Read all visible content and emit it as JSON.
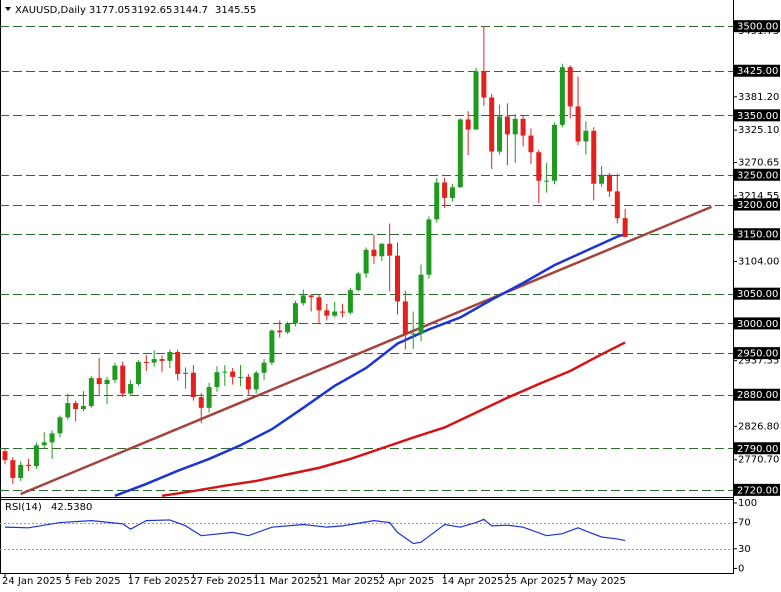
{
  "chart_data": [
    {
      "type": "candlestick",
      "title": "XAUUSD,Daily",
      "categories": [
        "24 Jan 2025",
        null,
        null,
        null,
        null,
        null,
        null,
        null,
        "5 Feb 2025",
        null,
        null,
        null,
        null,
        null,
        null,
        null,
        "17 Feb 2025",
        null,
        null,
        null,
        null,
        null,
        null,
        null,
        "27 Feb 2025",
        null,
        null,
        null,
        null,
        null,
        null,
        null,
        "11 Mar 2025",
        null,
        null,
        null,
        null,
        null,
        null,
        null,
        "21 Mar 2025",
        null,
        null,
        null,
        null,
        null,
        null,
        null,
        "2 Apr 2025",
        null,
        null,
        null,
        null,
        null,
        null,
        null,
        "14 Apr 2025",
        null,
        null,
        null,
        null,
        null,
        null,
        null,
        "25 Apr 2025",
        null,
        null,
        null,
        null,
        null,
        null,
        null,
        "7 May 2025",
        null,
        null,
        null,
        null,
        null,
        null,
        null
      ],
      "open": [
        2785,
        2770,
        2740,
        2762,
        2760,
        2795,
        2800,
        2815,
        2842,
        2866,
        2856,
        2861,
        2908,
        2898,
        2905,
        2929,
        2882,
        2898,
        2935,
        2934,
        2940,
        2937,
        2952,
        2915,
        2917,
        2876,
        2858,
        2893,
        2918,
        2919,
        2910,
        2910,
        2889,
        2917,
        2934,
        2988,
        2985,
        3000,
        3034,
        3047,
        3044,
        3022,
        3013,
        3020,
        3018,
        3056,
        3084,
        3124,
        3113,
        3134,
        3114,
        3037,
        2982,
        2983,
        3082,
        3175,
        3237,
        3211,
        3229,
        3343,
        3326,
        3424,
        3380,
        3289,
        3348,
        3318,
        3344,
        3316,
        3288,
        3240,
        3240,
        3334,
        3431,
        3365,
        3306,
        3324,
        3235,
        3250,
        3222,
        3177.05
      ],
      "high": [
        2790,
        2775,
        2768,
        2772,
        2800,
        2817,
        2820,
        2845,
        2882,
        2870,
        2886,
        2911,
        2942,
        2910,
        2934,
        2936,
        2905,
        2938,
        2947,
        2955,
        2946,
        2956,
        2956,
        2926,
        2930,
        2883,
        2900,
        2928,
        2930,
        2925,
        2930,
        2915,
        2920,
        2940,
        2990,
        3005,
        3003,
        3038,
        3057,
        3050,
        3048,
        3033,
        3036,
        3033,
        3060,
        3087,
        3128,
        3149,
        3135,
        3168,
        3136,
        3055,
        3020,
        3099,
        3180,
        3245,
        3245,
        3235,
        3345,
        3357,
        3430,
        3500,
        3386,
        3368,
        3370,
        3352,
        3350,
        3328,
        3292,
        3270,
        3338,
        3437,
        3434,
        3415,
        3340,
        3330,
        3265,
        3253,
        3252,
        3192.65
      ],
      "low": [
        2763,
        2730,
        2735,
        2752,
        2755,
        2790,
        2772,
        2808,
        2838,
        2835,
        2852,
        2858,
        2880,
        2864,
        2900,
        2876,
        2880,
        2895,
        2920,
        2927,
        2918,
        2925,
        2904,
        2890,
        2870,
        2832,
        2850,
        2885,
        2895,
        2897,
        2895,
        2880,
        2882,
        2905,
        2930,
        2976,
        2982,
        2995,
        3030,
        3020,
        3000,
        3005,
        3010,
        3010,
        3015,
        3054,
        3076,
        3100,
        3105,
        3054,
        3015,
        2956,
        2957,
        2970,
        3075,
        3170,
        3194,
        3205,
        3228,
        3283,
        3326,
        3366,
        3260,
        3284,
        3266,
        3270,
        3298,
        3268,
        3202,
        3220,
        3234,
        3330,
        3345,
        3300,
        3284,
        3207,
        3230,
        3213,
        3168,
        3144.7
      ],
      "close": [
        2770,
        2740,
        2762,
        2760,
        2795,
        2800,
        2815,
        2842,
        2866,
        2856,
        2861,
        2908,
        2898,
        2905,
        2929,
        2882,
        2898,
        2935,
        2934,
        2940,
        2937,
        2952,
        2915,
        2917,
        2876,
        2858,
        2893,
        2918,
        2919,
        2910,
        2910,
        2889,
        2917,
        2934,
        2988,
        2985,
        3000,
        3034,
        3047,
        3044,
        3022,
        3013,
        3020,
        3018,
        3056,
        3084,
        3124,
        3113,
        3134,
        3114,
        3037,
        2982,
        2983,
        3082,
        3175,
        3237,
        3211,
        3229,
        3343,
        3326,
        3424,
        3380,
        3289,
        3348,
        3318,
        3344,
        3316,
        3288,
        3240,
        3240,
        3334,
        3431,
        3365,
        3306,
        3324,
        3235,
        3250,
        3222,
        3177,
        3145.55
      ],
      "up_color": "#1f9a1f",
      "down_color": "#e3201b",
      "overlays": [
        {
          "color": "#1c34d4",
          "x": [
            14,
            18,
            22,
            26,
            30,
            34,
            38,
            42,
            46,
            50,
            54,
            58,
            62,
            66,
            70,
            74,
            78,
            79
          ],
          "values": [
            2710,
            2730,
            2752,
            2772,
            2795,
            2822,
            2858,
            2895,
            2925,
            2966,
            2990,
            3010,
            3040,
            3068,
            3098,
            3122,
            3146,
            3150
          ]
        },
        {
          "color": "#d41414",
          "x": [
            20,
            24,
            28,
            32,
            36,
            40,
            44,
            48,
            52,
            56,
            60,
            64,
            68,
            72,
            76,
            79
          ],
          "values": [
            2710,
            2718,
            2727,
            2735,
            2746,
            2757,
            2772,
            2790,
            2808,
            2825,
            2850,
            2875,
            2898,
            2920,
            2948,
            2968
          ]
        }
      ],
      "trendline": {
        "color": "#a3443e",
        "points": [
          [
            2,
            2713
          ],
          [
            90,
            3196
          ]
        ]
      },
      "hlines": {
        "color": "#2e6b2e",
        "levels": [
          {
            "value": 3500,
            "label": "3500.00"
          },
          {
            "value": 3425,
            "label": "3425.00"
          },
          {
            "value": 3350,
            "label": "3350.00"
          },
          {
            "value": 3250,
            "label": "3250.00"
          },
          {
            "value": 3200,
            "label": "3200.00"
          },
          {
            "value": 3150,
            "label": "3150.00"
          },
          {
            "value": 3050,
            "label": "3050.00"
          },
          {
            "value": 3000,
            "label": "3000.00"
          },
          {
            "value": 2950,
            "label": "2950.00"
          },
          {
            "value": 2880,
            "label": "2880.00"
          },
          {
            "value": 2790,
            "label": "2790.00"
          },
          {
            "value": 2720,
            "label": "2720.00"
          }
        ]
      },
      "ylim": [
        2708,
        3544
      ],
      "yticks": [
        3491.75,
        {
          "value": 3381.2,
          "label": "3381.20"
        },
        {
          "value": 3325.1,
          "label": "3325.10"
        },
        3270.65,
        3214.55,
        {
          "value": 3104,
          "label": "3104.00"
        },
        2937.35,
        {
          "value": 2826.8,
          "label": "2826.80"
        },
        {
          "value": 2770.7,
          "label": "2770.70"
        }
      ]
    },
    {
      "type": "line",
      "title": "RSI(14)",
      "color": "#1c34d4",
      "header_value": {
        "value": 42.538,
        "label": "42.5380"
      },
      "x": [
        0,
        3,
        7,
        11,
        15,
        16,
        18,
        21,
        23,
        25,
        29,
        31,
        34,
        38,
        41,
        43,
        47,
        49,
        50,
        52,
        53,
        55,
        56,
        58,
        60,
        61,
        62,
        64,
        66,
        69,
        71,
        73,
        74,
        76,
        78,
        79
      ],
      "values": [
        63,
        62,
        70,
        73,
        68,
        60,
        73,
        74,
        65,
        50,
        55,
        50,
        63,
        67,
        63,
        65,
        73,
        70,
        55,
        38,
        40,
        58,
        67,
        63,
        70,
        75,
        65,
        66,
        63,
        50,
        53,
        62,
        57,
        48,
        45,
        42.538
      ],
      "ylim": [
        -7,
        106
      ],
      "yticks": [
        100,
        70,
        30,
        0
      ],
      "levels": [
        70,
        30
      ]
    }
  ]
}
